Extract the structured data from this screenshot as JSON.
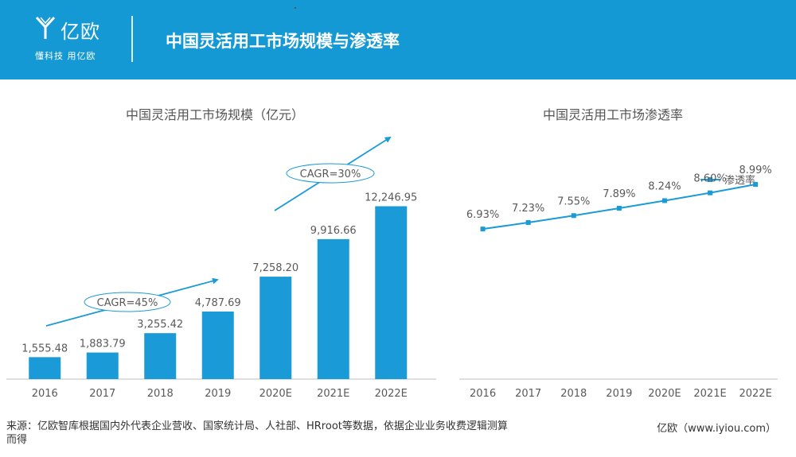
{
  "header": {
    "logo_name": "亿欧",
    "logo_slogan": "懂科技 用亿欧",
    "title": "中国灵活用工市场规模与渗透率",
    "colors": {
      "background": "#1599d4",
      "text": "#ffffff"
    }
  },
  "chart_data": [
    {
      "type": "bar",
      "title": "中国灵活用工市场规模（亿元）",
      "categories": [
        "2016",
        "2017",
        "2018",
        "2019",
        "2020E",
        "2021E",
        "2022E"
      ],
      "values": [
        1555.48,
        1883.79,
        3255.42,
        4787.69,
        7258.2,
        9916.66,
        12246.95
      ],
      "value_labels": [
        "1,555.48",
        "1,883.79",
        "3,255.42",
        "4,787.69",
        "7,258.20",
        "9,916.66",
        "12,246.95"
      ],
      "ylim": [
        0,
        12500
      ],
      "color": "#1a9bd7",
      "annotations": [
        {
          "text": "CAGR=45%",
          "spans": [
            "2016",
            "2019"
          ]
        },
        {
          "text": "CAGR=30%",
          "spans": [
            "2020E",
            "2022E"
          ]
        }
      ]
    },
    {
      "type": "line",
      "title": "中国灵活用工市场渗透率",
      "categories": [
        "2016",
        "2017",
        "2018",
        "2019",
        "2020E",
        "2021E",
        "2022E"
      ],
      "series": [
        {
          "name": "渗透率",
          "values": [
            6.93,
            7.23,
            7.55,
            7.89,
            8.24,
            8.6,
            8.99
          ],
          "labels": [
            "6.93%",
            "7.23%",
            "7.55%",
            "7.89%",
            "8.24%",
            "8.60%",
            "8.99%"
          ]
        }
      ],
      "ylim": [
        0,
        12
      ],
      "legend": "top-right",
      "color": "#1a9bd7"
    }
  ],
  "footer": {
    "source": "来源：亿欧智库根据国内外代表企业营收、国家统计局、人社部、HRroot等数据，依据企业业务收费逻辑测算而得",
    "brand": "亿欧（www.iyiou.com）"
  }
}
